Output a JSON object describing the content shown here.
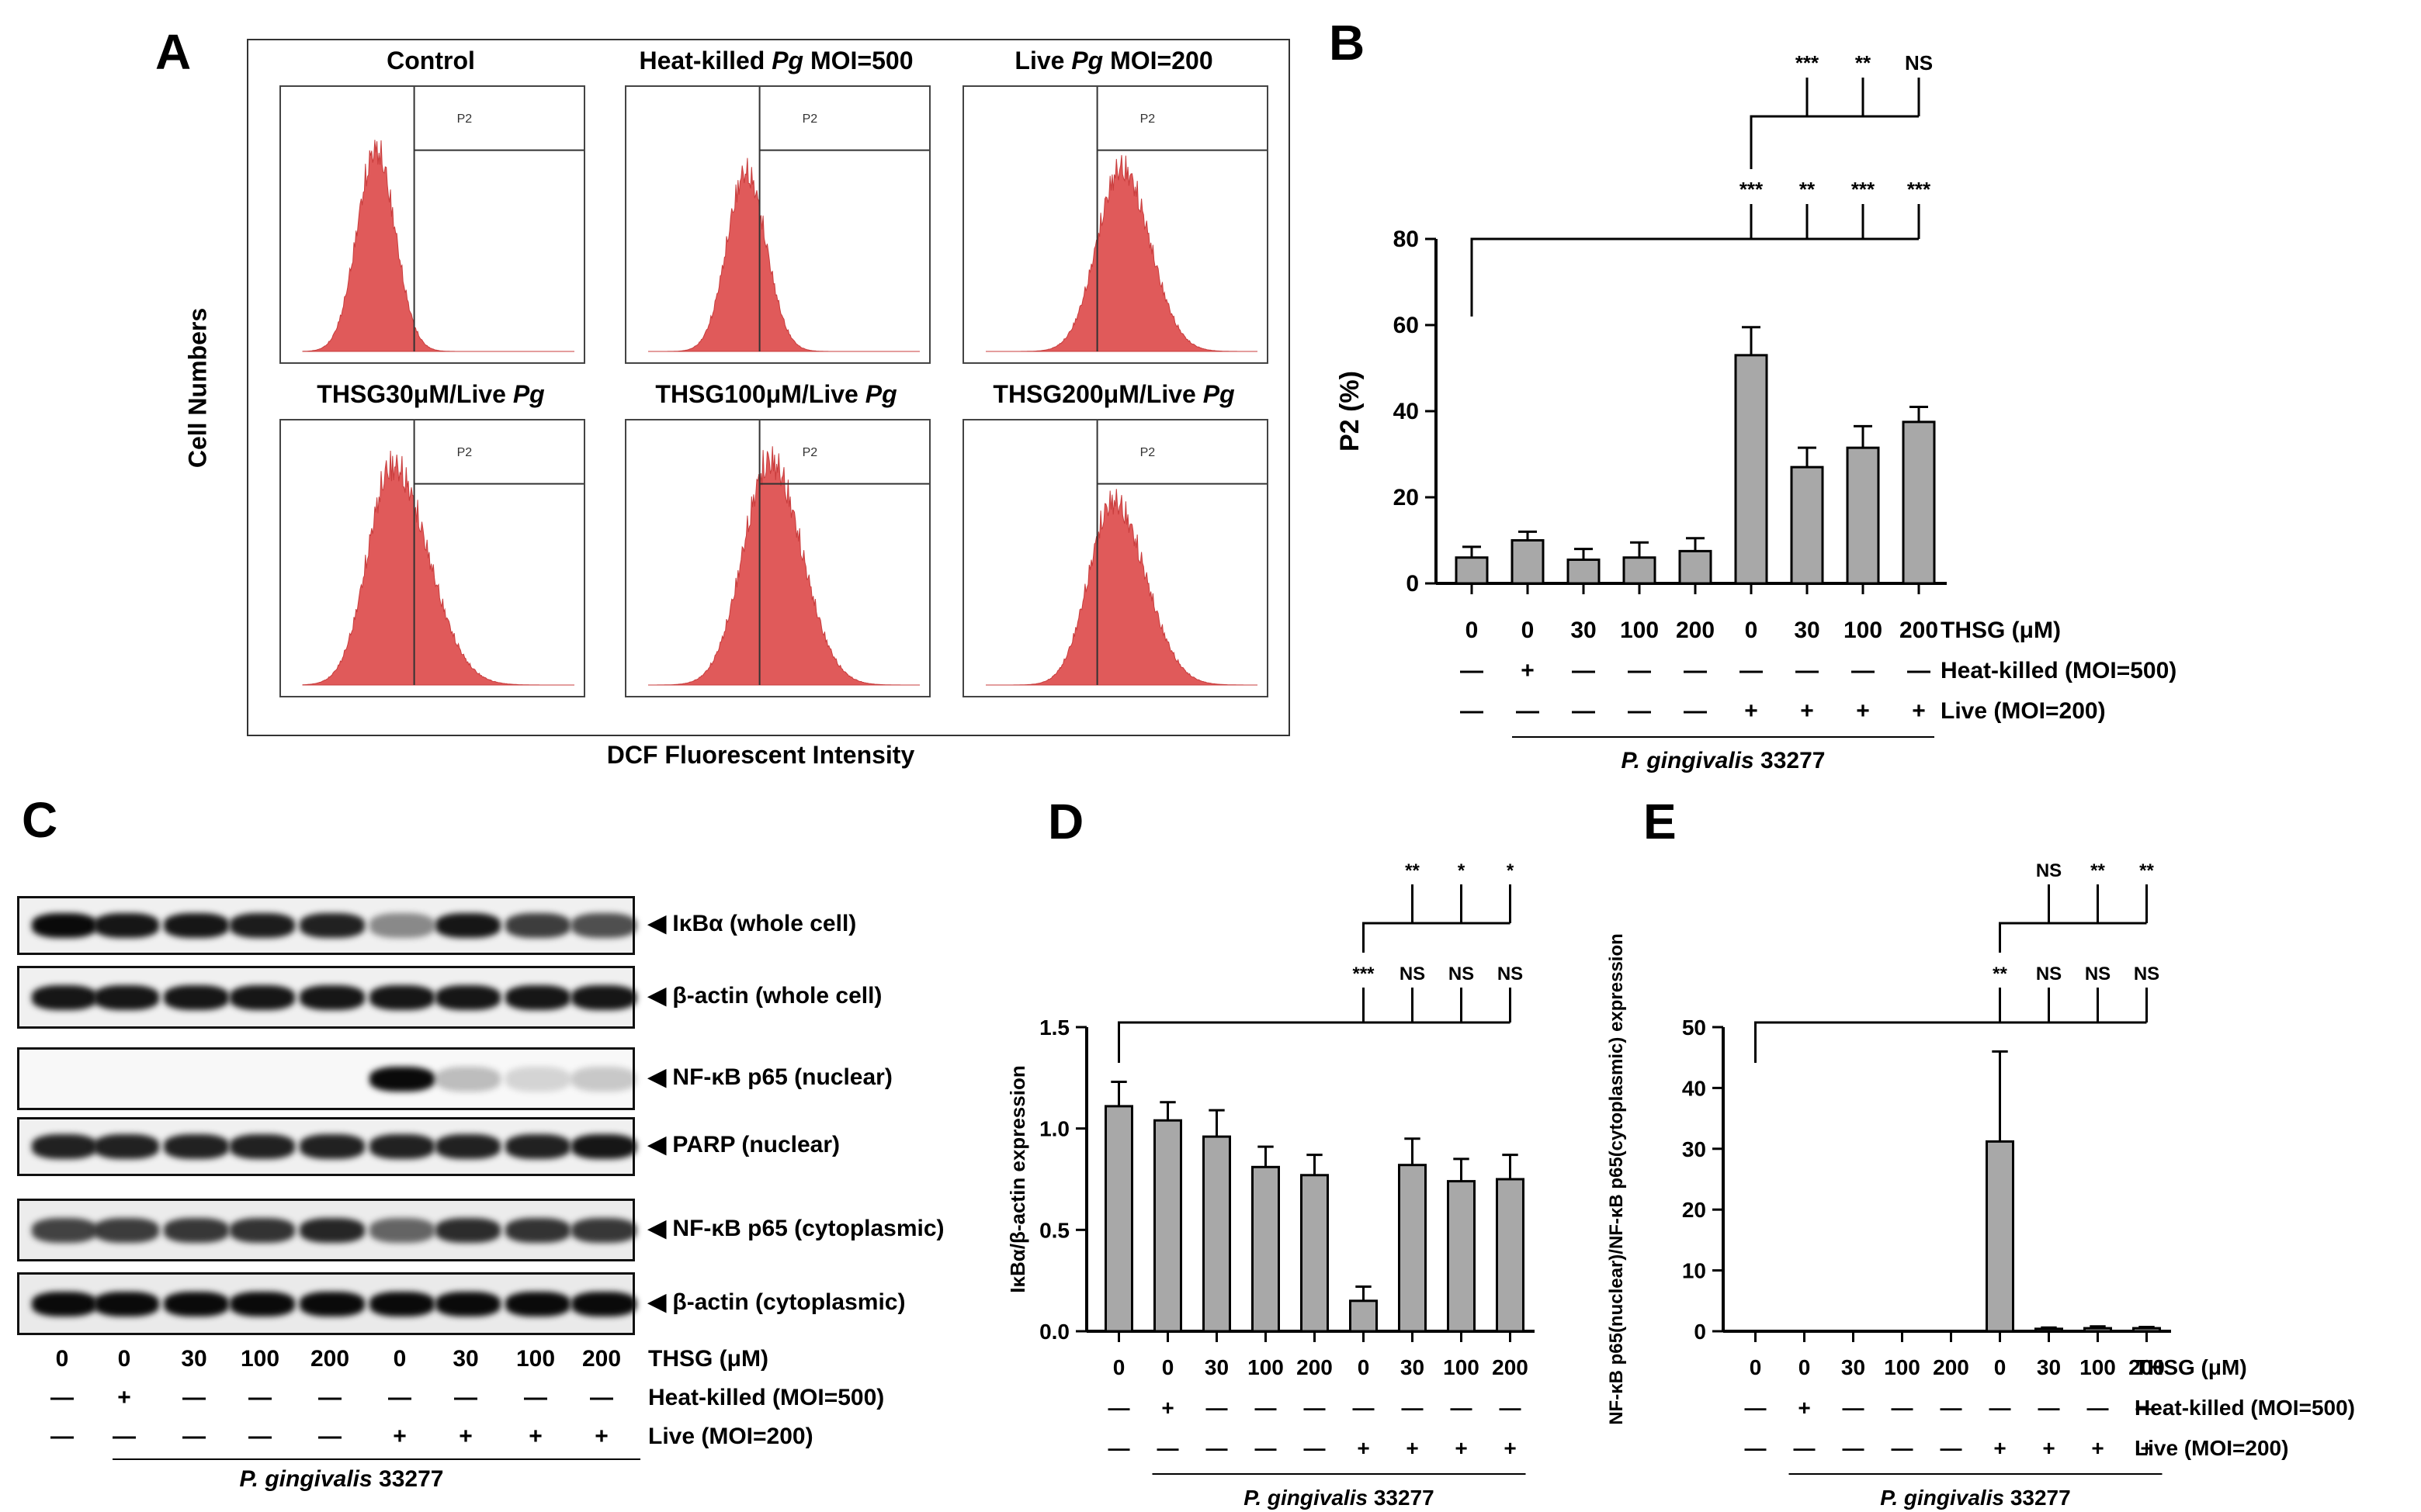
{
  "panel_labels": {
    "A": "A",
    "B": "B",
    "C": "C",
    "D": "D",
    "E": "E"
  },
  "panelA": {
    "titles": [
      {
        "pre": "Control",
        "it": "",
        "post": ""
      },
      {
        "pre": "Heat-killed ",
        "it": "Pg",
        "post": " MOI=500"
      },
      {
        "pre": "Live ",
        "it": "Pg",
        "post": " MOI=200"
      },
      {
        "pre": "THSG30μM/Live ",
        "it": "Pg",
        "post": ""
      },
      {
        "pre": "THSG100μM/Live ",
        "it": "Pg",
        "post": ""
      },
      {
        "pre": "THSG200μM/Live ",
        "it": "Pg",
        "post": ""
      }
    ],
    "gate": "P2",
    "ylabel": "Cell Numbers",
    "xlabel": "DCF Fluorescent Intensity",
    "hist_color": "#e05a5a"
  },
  "conditions": {
    "thsg_label": "THSG (μM)",
    "thsg": [
      "0",
      "0",
      "30",
      "100",
      "200",
      "0",
      "30",
      "100",
      "200"
    ],
    "heat_label": "Heat-killed (MOI=500)",
    "heat": [
      "—",
      "+",
      "—",
      "—",
      "—",
      "—",
      "—",
      "—",
      "—"
    ],
    "live_label": "Live (MOI=200)",
    "live": [
      "—",
      "—",
      "—",
      "—",
      "—",
      "+",
      "+",
      "+",
      "+"
    ],
    "strain": "P. gingivalis",
    "strain_num": " 33277"
  },
  "blot_labels": [
    "◀ IκBα (whole cell)",
    "◀ β-actin (whole cell)",
    "◀ NF-κB p65 (nuclear)",
    "◀ PARP (nuclear)",
    "◀ NF-κB p65 (cytoplasmic)",
    "◀ β-actin (cytoplasmic)"
  ],
  "chart_data": [
    {
      "panel": "B",
      "type": "bar",
      "ylabel": "P2 (%)",
      "ylim": [
        0,
        80
      ],
      "yticks": [
        0,
        20,
        40,
        60,
        80
      ],
      "values": [
        6,
        10,
        5.5,
        6,
        7.5,
        53,
        27,
        31.5,
        37.5
      ],
      "errors": [
        2.5,
        2,
        2.5,
        3.5,
        3,
        6.5,
        4.5,
        5,
        3.5
      ],
      "sig_vs_control": [
        "***",
        "**",
        "***",
        "***"
      ],
      "sig_vs_live": [
        "***",
        "**",
        "NS"
      ],
      "bar_color": "#a8a8a8"
    },
    {
      "panel": "D",
      "type": "bar",
      "ylabel": "IκBα/β-actin expression",
      "ylim": [
        0,
        1.5
      ],
      "yticks": [
        "0.0",
        "0.5",
        "1.0",
        "1.5"
      ],
      "values": [
        1.11,
        1.04,
        0.96,
        0.81,
        0.77,
        0.15,
        0.82,
        0.74,
        0.75
      ],
      "errors": [
        0.12,
        0.09,
        0.13,
        0.1,
        0.1,
        0.07,
        0.13,
        0.11,
        0.12
      ],
      "sig_vs_control": [
        "***",
        "NS",
        "NS",
        "NS"
      ],
      "sig_vs_live": [
        "**",
        "*",
        "*"
      ],
      "bar_color": "#a8a8a8"
    },
    {
      "panel": "E",
      "type": "bar",
      "ylabel": "NF-κB p65(nuclear)/NF-κB p65(cytoplasmic) expression",
      "ylim": [
        0,
        50
      ],
      "yticks": [
        0,
        10,
        20,
        30,
        40,
        50
      ],
      "values": [
        0,
        0,
        0,
        0,
        0,
        31.2,
        0.4,
        0.5,
        0.5
      ],
      "errors": [
        0,
        0,
        0,
        0,
        0,
        14.8,
        0.2,
        0.3,
        0.2
      ],
      "sig_vs_control": [
        "**",
        "NS",
        "NS",
        "NS"
      ],
      "sig_vs_live": [
        "NS",
        "**",
        "**"
      ],
      "bar_color": "#a8a8a8"
    }
  ]
}
